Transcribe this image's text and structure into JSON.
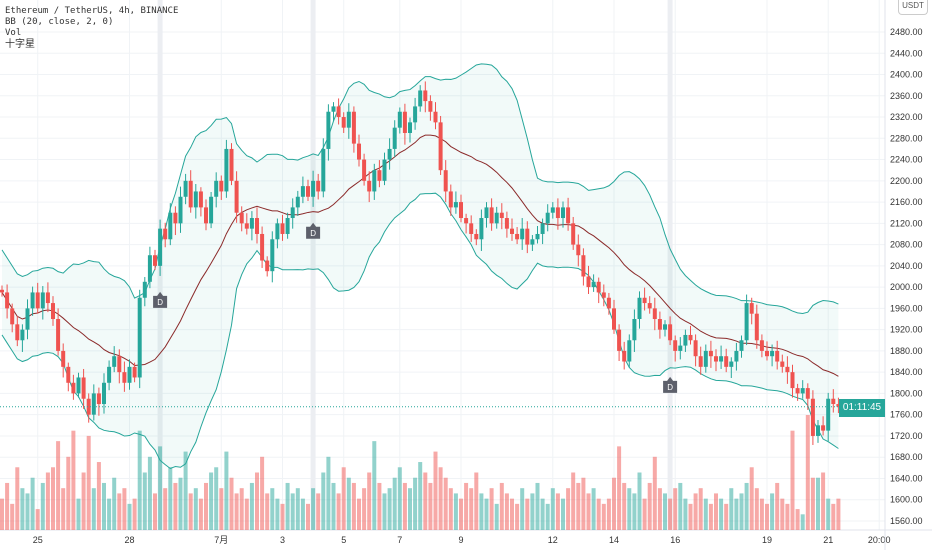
{
  "header": {
    "symbol_line": "Ethereum / TetherUS, 4h, BINANCE",
    "bb_line": "BB (20, close, 2, 0)",
    "vol_line": "Vol",
    "cross_star": "十字星"
  },
  "axis": {
    "currency": "USDT",
    "countdown": "01:11:45"
  },
  "colors": {
    "up": "#26a69a",
    "down": "#ef5350",
    "band": "#26a69a",
    "basis": "#8b2a2a"
  },
  "chart_data": {
    "type": "candlestick",
    "title": "Ethereum / TetherUS, 4h, BINANCE",
    "ylim": [
      1540,
      2500
    ],
    "yticks": [
      1560,
      1600,
      1640,
      1680,
      1720,
      1760,
      1800,
      1840,
      1880,
      1920,
      1960,
      2000,
      2040,
      2080,
      2120,
      2160,
      2200,
      2240,
      2280,
      2320,
      2360,
      2400,
      2440,
      2480
    ],
    "xticks": [
      {
        "label": "25",
        "i": 7
      },
      {
        "label": "28",
        "i": 25
      },
      {
        "label": "7月",
        "i": 43
      },
      {
        "label": "3",
        "i": 55
      },
      {
        "label": "5",
        "i": 67
      },
      {
        "label": "7",
        "i": 78
      },
      {
        "label": "9",
        "i": 90
      },
      {
        "label": "12",
        "i": 108
      },
      {
        "label": "14",
        "i": 120
      },
      {
        "label": "16",
        "i": 132
      },
      {
        "label": "19",
        "i": 150
      },
      {
        "label": "21",
        "i": 162
      },
      {
        "label": "20:00",
        "i": 172
      }
    ],
    "markers": [
      {
        "label": "D",
        "i": 31
      },
      {
        "label": "D",
        "i": 61
      },
      {
        "label": "D",
        "i": 131
      }
    ],
    "open0": 1995,
    "closes": [
      1990,
      1960,
      1930,
      1900,
      1920,
      1960,
      1990,
      1960,
      1990,
      1970,
      1940,
      1880,
      1850,
      1820,
      1800,
      1830,
      1790,
      1760,
      1800,
      1780,
      1820,
      1850,
      1870,
      1840,
      1820,
      1850,
      1830,
      1980,
      2010,
      2060,
      2040,
      2110,
      2090,
      2140,
      2120,
      2170,
      2200,
      2150,
      2180,
      2150,
      2120,
      2170,
      2200,
      2180,
      2260,
      2200,
      2140,
      2120,
      2110,
      2130,
      2100,
      2050,
      2030,
      2090,
      2120,
      2100,
      2130,
      2150,
      2170,
      2190,
      2170,
      2200,
      2180,
      2260,
      2330,
      2340,
      2320,
      2300,
      2330,
      2270,
      2240,
      2200,
      2180,
      2220,
      2200,
      2240,
      2260,
      2300,
      2330,
      2290,
      2310,
      2340,
      2370,
      2350,
      2330,
      2310,
      2220,
      2180,
      2150,
      2160,
      2130,
      2120,
      2100,
      2090,
      2130,
      2150,
      2120,
      2140,
      2130,
      2110,
      2100,
      2090,
      2110,
      2080,
      2090,
      2100,
      2120,
      2140,
      2150,
      2130,
      2150,
      2120,
      2080,
      2060,
      2020,
      2000,
      2010,
      1990,
      1980,
      1960,
      1920,
      1880,
      1860,
      1900,
      1940,
      1980,
      1970,
      1960,
      1940,
      1920,
      1930,
      1900,
      1880,
      1890,
      1910,
      1900,
      1870,
      1850,
      1880,
      1870,
      1860,
      1870,
      1850,
      1860,
      1880,
      1900,
      1970,
      1950,
      1900,
      1880,
      1870,
      1880,
      1860,
      1850,
      1840,
      1810,
      1800,
      1810,
      1790,
      1720,
      1740,
      1730,
      1790,
      1780,
      1775
    ],
    "volumes": [
      30,
      45,
      25,
      60,
      40,
      35,
      50,
      20,
      45,
      55,
      60,
      85,
      40,
      70,
      95,
      30,
      55,
      90,
      40,
      65,
      45,
      30,
      50,
      35,
      40,
      25,
      30,
      95,
      55,
      70,
      35,
      80,
      40,
      60,
      45,
      50,
      75,
      35,
      40,
      30,
      45,
      55,
      60,
      40,
      75,
      50,
      35,
      40,
      30,
      45,
      55,
      70,
      35,
      40,
      30,
      25,
      45,
      35,
      40,
      30,
      25,
      40,
      35,
      55,
      70,
      45,
      35,
      60,
      50,
      45,
      30,
      40,
      55,
      85,
      45,
      35,
      40,
      50,
      60,
      45,
      40,
      50,
      65,
      55,
      45,
      75,
      60,
      50,
      40,
      35,
      30,
      45,
      40,
      55,
      35,
      30,
      40,
      25,
      45,
      35,
      30,
      25,
      40,
      30,
      35,
      45,
      30,
      25,
      40,
      35,
      30,
      40,
      55,
      45,
      50,
      35,
      40,
      30,
      25,
      30,
      50,
      80,
      45,
      40,
      35,
      55,
      30,
      45,
      70,
      40,
      35,
      30,
      40,
      45,
      30,
      25,
      35,
      40,
      30,
      25,
      35,
      30,
      25,
      40,
      30,
      35,
      45,
      60,
      40,
      30,
      25,
      35,
      45,
      30,
      25,
      95,
      20,
      15,
      110,
      50,
      50,
      55,
      30,
      25,
      30
    ]
  }
}
